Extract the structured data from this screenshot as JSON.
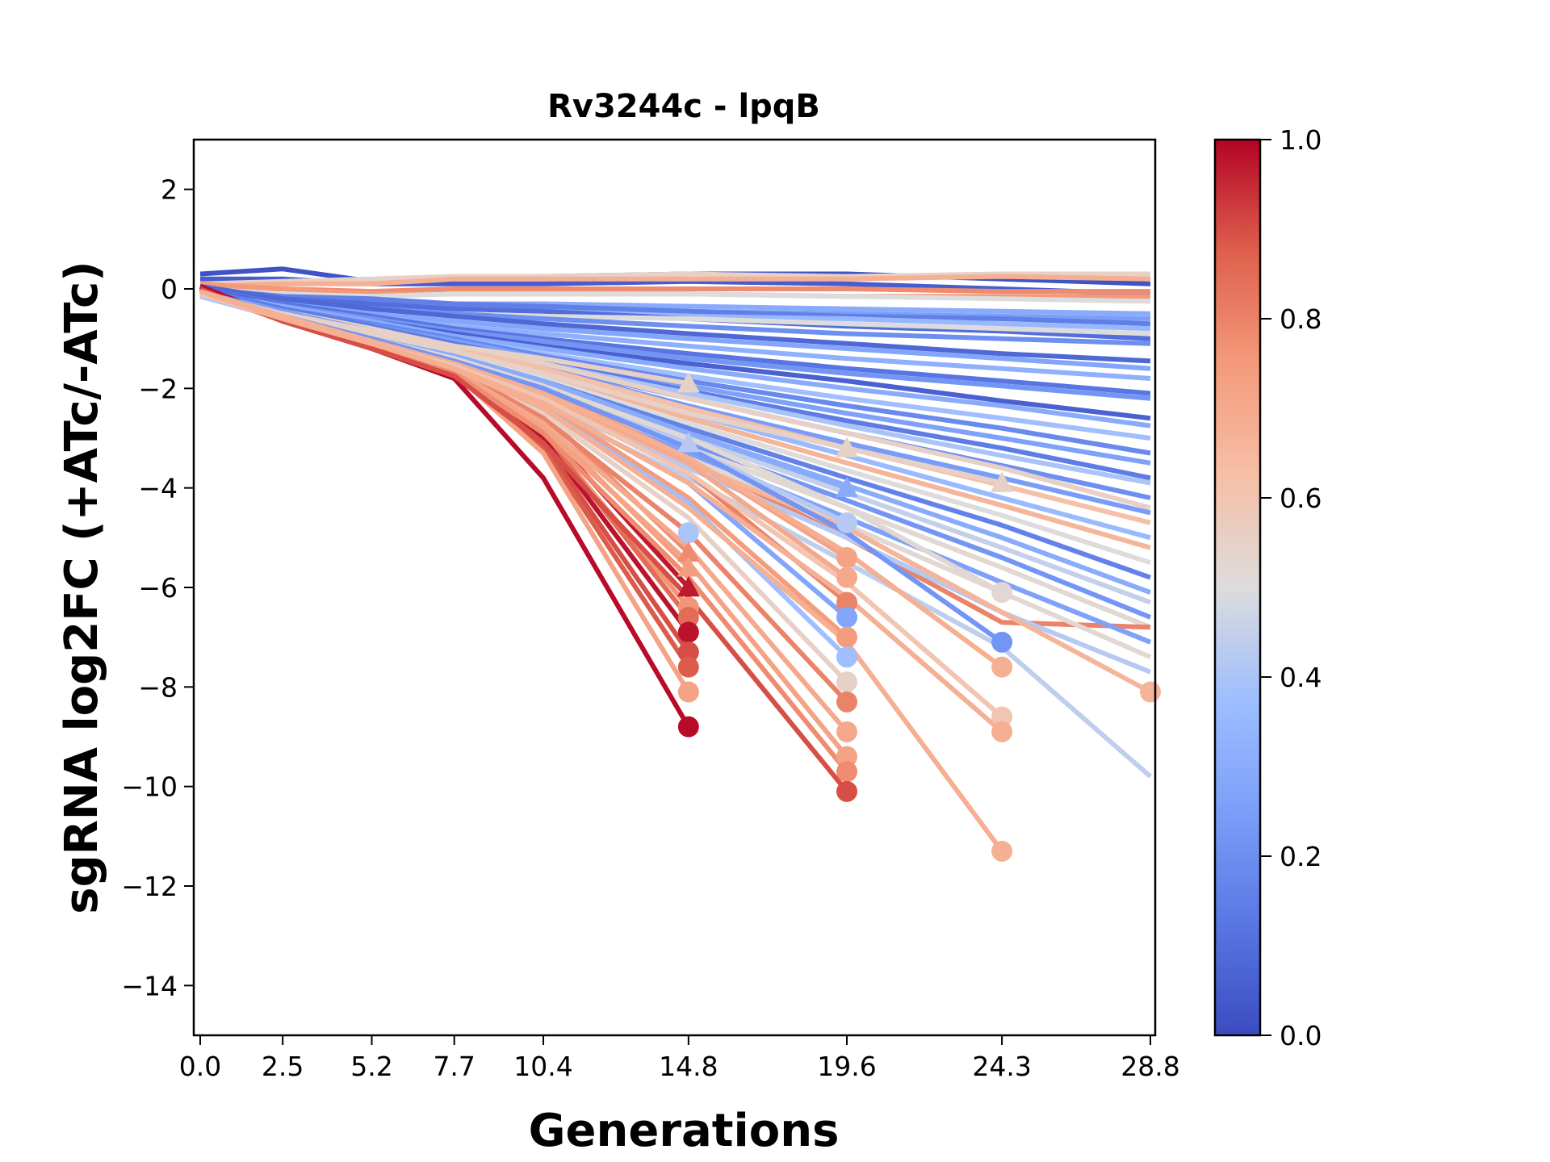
{
  "chart_data": {
    "type": "line",
    "title": "Rv3244c - lpqB",
    "xlabel": "Generations",
    "ylabel": "sgRNA log2FC (+ATc/-ATc)",
    "x": [
      0.0,
      2.5,
      5.2,
      7.7,
      10.4,
      14.8,
      19.6,
      24.3,
      28.8
    ],
    "x_tick_labels": [
      "0.0",
      "2.5",
      "5.2",
      "7.7",
      "10.4",
      "14.8",
      "19.6",
      "24.3",
      "28.8"
    ],
    "ylim": [
      -15,
      3
    ],
    "y_ticks": [
      2,
      0,
      -2,
      -4,
      -6,
      -8,
      -10,
      -12,
      -14
    ],
    "y_tick_labels": [
      "2",
      "0",
      "−2",
      "−4",
      "−6",
      "−8",
      "−10",
      "−12",
      "−14"
    ],
    "grid": false,
    "colormap": "coolwarm",
    "colorbar": {
      "range": [
        0.0,
        1.0
      ],
      "ticks": [
        0.0,
        0.2,
        0.4,
        0.6,
        0.8,
        1.0
      ],
      "tick_labels": [
        "0.0",
        "0.2",
        "0.4",
        "0.6",
        "0.8",
        "1.0"
      ],
      "placement": "right"
    },
    "marker_legend_note": "circle/triangle marker at last measured point of truncated series",
    "series": [
      {
        "c": 0.02,
        "y": [
          0.3,
          0.4,
          0.15,
          0.2,
          0.25,
          0.3,
          0.3,
          0.2,
          0.1
        ]
      },
      {
        "c": 0.05,
        "y": [
          0.2,
          0.2,
          0.1,
          0.1,
          0.1,
          0.15,
          0.1,
          0.0,
          -0.1
        ]
      },
      {
        "c": 0.55,
        "y": [
          0.1,
          0.15,
          0.2,
          0.25,
          0.25,
          0.3,
          0.25,
          0.3,
          0.3
        ]
      },
      {
        "c": 0.68,
        "y": [
          0.05,
          0.1,
          0.1,
          0.2,
          0.2,
          0.2,
          0.2,
          0.25,
          0.2
        ]
      },
      {
        "c": 0.78,
        "y": [
          0.0,
          0.0,
          -0.05,
          0.0,
          0.0,
          0.0,
          0.0,
          -0.05,
          -0.05
        ]
      },
      {
        "c": 0.75,
        "y": [
          0.1,
          0.0,
          -0.1,
          -0.1,
          -0.1,
          -0.1,
          -0.15,
          -0.15,
          -0.15
        ]
      },
      {
        "c": 0.5,
        "y": [
          0.0,
          -0.1,
          -0.15,
          -0.1,
          -0.1,
          -0.1,
          -0.15,
          -0.2,
          -0.25
        ]
      },
      {
        "c": 0.3,
        "y": [
          -0.05,
          -0.2,
          -0.25,
          -0.3,
          -0.3,
          -0.35,
          -0.4,
          -0.45,
          -0.5
        ]
      },
      {
        "c": 0.25,
        "y": [
          0.0,
          -0.2,
          -0.3,
          -0.35,
          -0.4,
          -0.45,
          -0.5,
          -0.55,
          -0.6
        ]
      },
      {
        "c": 0.15,
        "y": [
          0.0,
          -0.15,
          -0.2,
          -0.3,
          -0.35,
          -0.45,
          -0.55,
          -0.6,
          -0.7
        ]
      },
      {
        "c": 0.35,
        "y": [
          -0.1,
          -0.25,
          -0.35,
          -0.4,
          -0.45,
          -0.55,
          -0.6,
          -0.7,
          -0.8
        ]
      },
      {
        "c": 0.1,
        "y": [
          0.0,
          -0.2,
          -0.3,
          -0.4,
          -0.45,
          -0.6,
          -0.75,
          -0.85,
          -1.0
        ]
      },
      {
        "c": 0.5,
        "y": [
          -0.05,
          -0.3,
          -0.45,
          -0.5,
          -0.55,
          -0.6,
          -0.7,
          -0.8,
          -0.9
        ]
      },
      {
        "c": 0.2,
        "y": [
          0.0,
          -0.25,
          -0.4,
          -0.5,
          -0.6,
          -0.75,
          -0.9,
          -1.0,
          -1.1
        ]
      },
      {
        "c": 0.08,
        "y": [
          0.05,
          -0.2,
          -0.4,
          -0.55,
          -0.7,
          -0.9,
          -1.1,
          -1.3,
          -1.45
        ]
      },
      {
        "c": 0.28,
        "y": [
          -0.05,
          -0.3,
          -0.5,
          -0.65,
          -0.8,
          -1.0,
          -1.2,
          -1.4,
          -1.6
        ]
      },
      {
        "c": 0.32,
        "y": [
          -0.05,
          -0.3,
          -0.55,
          -0.75,
          -0.9,
          -1.15,
          -1.4,
          -1.6,
          -1.8
        ]
      },
      {
        "c": 0.12,
        "y": [
          0.0,
          -0.3,
          -0.55,
          -0.8,
          -1.0,
          -1.3,
          -1.6,
          -1.85,
          -2.1
        ]
      },
      {
        "c": 0.22,
        "y": [
          -0.05,
          -0.35,
          -0.6,
          -0.85,
          -1.05,
          -1.4,
          -1.7,
          -1.95,
          -2.2
        ]
      },
      {
        "c": 0.06,
        "y": [
          0.0,
          -0.35,
          -0.65,
          -0.9,
          -1.15,
          -1.5,
          -1.85,
          -2.25,
          -2.6
        ]
      },
      {
        "c": 0.3,
        "y": [
          -0.05,
          -0.35,
          -0.65,
          -0.95,
          -1.2,
          -1.6,
          -2.0,
          -2.35,
          -2.75
        ]
      },
      {
        "c": 0.38,
        "y": [
          -0.1,
          -0.4,
          -0.7,
          -1.0,
          -1.3,
          -1.75,
          -2.2,
          -2.6,
          -3.0
        ]
      },
      {
        "c": 0.18,
        "y": [
          -0.05,
          -0.4,
          -0.7,
          -1.0,
          -1.35,
          -1.85,
          -2.35,
          -2.8,
          -3.3
        ]
      },
      {
        "c": 0.26,
        "y": [
          -0.05,
          -0.4,
          -0.75,
          -1.05,
          -1.4,
          -1.95,
          -2.5,
          -3.0,
          -3.5
        ]
      },
      {
        "c": 0.14,
        "y": [
          0.0,
          -0.4,
          -0.75,
          -1.1,
          -1.45,
          -2.05,
          -2.65,
          -3.2,
          -3.8
        ]
      },
      {
        "c": 0.4,
        "y": [
          -0.1,
          -0.45,
          -0.8,
          -1.15,
          -1.5,
          -2.1,
          -2.75,
          -3.35,
          -3.9
        ]
      },
      {
        "c": 0.2,
        "y": [
          -0.05,
          -0.45,
          -0.8,
          -1.15,
          -1.55,
          -2.2,
          -2.9,
          -3.55,
          -4.2
        ]
      },
      {
        "c": 0.55,
        "y": [
          -0.1,
          -0.45,
          -0.8,
          -1.15,
          -1.5,
          -2.2,
          -2.9,
          -3.6,
          -4.4
        ]
      },
      {
        "c": 0.24,
        "y": [
          -0.05,
          -0.45,
          -0.85,
          -1.2,
          -1.6,
          -2.35,
          -3.1,
          -3.8,
          -4.5
        ]
      },
      {
        "c": 0.62,
        "y": [
          -0.1,
          -0.5,
          -0.85,
          -1.2,
          -1.6,
          -2.4,
          -3.2,
          -3.95,
          -4.7
        ]
      },
      {
        "c": 0.36,
        "y": [
          -0.1,
          -0.5,
          -0.85,
          -1.25,
          -1.7,
          -2.5,
          -3.35,
          -4.2,
          -5.0
        ]
      },
      {
        "c": 0.66,
        "y": [
          -0.1,
          -0.5,
          -0.9,
          -1.3,
          -1.75,
          -2.6,
          -3.5,
          -4.35,
          -5.2
        ]
      },
      {
        "c": 0.5,
        "y": [
          -0.1,
          -0.5,
          -0.9,
          -1.3,
          -1.8,
          -2.7,
          -3.65,
          -4.55,
          -5.5
        ]
      },
      {
        "c": 0.16,
        "y": [
          -0.05,
          -0.5,
          -0.95,
          -1.35,
          -1.85,
          -2.8,
          -3.8,
          -4.75,
          -5.8
        ]
      },
      {
        "c": 0.3,
        "y": [
          -0.1,
          -0.5,
          -0.95,
          -1.4,
          -1.9,
          -2.9,
          -3.95,
          -5.0,
          -6.1
        ]
      },
      {
        "c": 0.45,
        "y": [
          -0.1,
          -0.55,
          -1.0,
          -1.45,
          -2.0,
          -3.0,
          -4.1,
          -5.2,
          -6.3
        ]
      },
      {
        "c": 0.22,
        "y": [
          -0.05,
          -0.55,
          -1.0,
          -1.5,
          -2.05,
          -3.1,
          -4.25,
          -5.4,
          -6.6
        ]
      },
      {
        "c": 0.52,
        "y": [
          -0.1,
          -0.55,
          -1.05,
          -1.5,
          -2.1,
          -3.2,
          -4.4,
          -5.6,
          -6.8
        ]
      },
      {
        "c": 0.8,
        "y": [
          -0.1,
          -0.55,
          -1.0,
          -1.45,
          -2.0,
          -3.4,
          -5.0,
          -6.7,
          -6.8
        ]
      },
      {
        "c": 0.26,
        "y": [
          -0.05,
          -0.55,
          -1.05,
          -1.55,
          -2.15,
          -3.3,
          -4.6,
          -5.9,
          -7.1
        ]
      },
      {
        "c": 0.52,
        "y": [
          -0.1,
          -0.6,
          -1.1,
          -1.6,
          -2.2,
          -3.4,
          -4.75,
          -6.1,
          -7.4
        ]
      },
      {
        "c": 0.42,
        "y": [
          -0.1,
          -0.6,
          -1.1,
          -1.6,
          -2.3,
          -3.6,
          -5.0,
          -6.5,
          -7.7
        ]
      },
      {
        "c": 0.66,
        "y": [
          -0.1,
          -0.55,
          -1.05,
          -1.55,
          -2.2,
          -3.5,
          -4.8,
          -6.5,
          -8.1
        ],
        "marker": "o"
      },
      {
        "c": 0.44,
        "y": [
          -0.1,
          -0.6,
          -1.15,
          -1.7,
          -2.4,
          -3.8,
          -5.5,
          -7.2,
          -9.8
        ]
      },
      {
        "c": 0.55,
        "y": [
          -0.1,
          -0.5,
          -0.85,
          -1.15,
          -1.4,
          -1.9
        ],
        "marker": "^"
      },
      {
        "c": 0.42,
        "y": [
          -0.1,
          -0.55,
          -1.0,
          -1.4,
          -1.9,
          -3.1
        ],
        "marker": "^"
      },
      {
        "c": 0.4,
        "y": [
          -0.15,
          -0.6,
          -1.1,
          -1.6,
          -2.6,
          -4.9
        ],
        "marker": "o"
      },
      {
        "c": 0.78,
        "y": [
          -0.05,
          -0.55,
          -1.05,
          -1.5,
          -2.5,
          -5.3
        ],
        "marker": "^"
      },
      {
        "c": 0.74,
        "y": [
          -0.05,
          -0.6,
          -1.1,
          -1.55,
          -2.7,
          -5.6
        ],
        "marker": "^"
      },
      {
        "c": 0.97,
        "y": [
          0.0,
          -0.6,
          -1.1,
          -1.6,
          -2.8,
          -6.0
        ],
        "marker": "^"
      },
      {
        "c": 0.76,
        "y": [
          -0.05,
          -0.6,
          -1.1,
          -1.6,
          -2.9,
          -6.4
        ],
        "marker": "o"
      },
      {
        "c": 0.85,
        "y": [
          0.0,
          -0.6,
          -1.15,
          -1.6,
          -2.9,
          -6.6
        ],
        "marker": "o"
      },
      {
        "c": 0.98,
        "y": [
          0.05,
          -0.6,
          -1.15,
          -1.65,
          -3.0,
          -6.9
        ],
        "marker": "o"
      },
      {
        "c": 0.9,
        "y": [
          0.0,
          -0.6,
          -1.15,
          -1.65,
          -3.1,
          -7.3
        ],
        "marker": "o"
      },
      {
        "c": 0.88,
        "y": [
          0.0,
          -0.65,
          -1.2,
          -1.7,
          -3.2,
          -7.6
        ],
        "marker": "o"
      },
      {
        "c": 0.72,
        "y": [
          -0.05,
          -0.65,
          -1.2,
          -1.7,
          -3.3,
          -8.1
        ],
        "marker": "o"
      },
      {
        "c": 0.99,
        "y": [
          0.05,
          -0.6,
          -1.2,
          -1.8,
          -3.8,
          -8.8
        ],
        "marker": "o"
      },
      {
        "c": 0.55,
        "y": [
          -0.1,
          -0.5,
          -0.9,
          -1.25,
          -1.7,
          -2.5,
          -3.2
        ],
        "marker": "^"
      },
      {
        "c": 0.3,
        "y": [
          -0.05,
          -0.5,
          -0.95,
          -1.35,
          -1.85,
          -2.9,
          -4.0
        ],
        "marker": "^"
      },
      {
        "c": 0.42,
        "y": [
          -0.1,
          -0.55,
          -1.0,
          -1.45,
          -2.0,
          -3.2,
          -4.7
        ],
        "marker": "o"
      },
      {
        "c": 0.72,
        "y": [
          -0.05,
          -0.55,
          -1.0,
          -1.45,
          -2.0,
          -3.4,
          -5.4
        ],
        "marker": "o"
      },
      {
        "c": 0.7,
        "y": [
          -0.05,
          -0.55,
          -1.0,
          -1.5,
          -2.1,
          -3.5,
          -5.8
        ],
        "marker": "o"
      },
      {
        "c": 0.8,
        "y": [
          -0.05,
          -0.55,
          -1.05,
          -1.5,
          -2.2,
          -3.7,
          -6.3
        ],
        "marker": "o"
      },
      {
        "c": 0.28,
        "y": [
          -0.05,
          -0.55,
          -1.05,
          -1.55,
          -2.3,
          -3.9,
          -6.6
        ],
        "marker": "o"
      },
      {
        "c": 0.74,
        "y": [
          -0.05,
          -0.6,
          -1.1,
          -1.55,
          -2.3,
          -4.2,
          -7.0
        ],
        "marker": "o"
      },
      {
        "c": 0.38,
        "y": [
          -0.1,
          -0.6,
          -1.1,
          -1.6,
          -2.4,
          -4.3,
          -7.4
        ],
        "marker": "o"
      },
      {
        "c": 0.55,
        "y": [
          -0.1,
          -0.6,
          -1.1,
          -1.6,
          -2.5,
          -4.6,
          -7.9
        ],
        "marker": "o"
      },
      {
        "c": 0.8,
        "y": [
          -0.05,
          -0.6,
          -1.1,
          -1.6,
          -2.6,
          -4.9,
          -8.3
        ],
        "marker": "o"
      },
      {
        "c": 0.7,
        "y": [
          -0.05,
          -0.6,
          -1.15,
          -1.65,
          -2.7,
          -5.2,
          -8.9
        ],
        "marker": "o"
      },
      {
        "c": 0.72,
        "y": [
          -0.05,
          -0.6,
          -1.15,
          -1.65,
          -2.8,
          -5.5,
          -9.4
        ],
        "marker": "o"
      },
      {
        "c": 0.78,
        "y": [
          -0.05,
          -0.6,
          -1.15,
          -1.7,
          -2.9,
          -5.8,
          -9.7
        ],
        "marker": "o"
      },
      {
        "c": 0.9,
        "y": [
          0.0,
          -0.65,
          -1.2,
          -1.75,
          -3.1,
          -6.2,
          -10.1
        ],
        "marker": "o"
      },
      {
        "c": 0.55,
        "y": [
          -0.1,
          -0.5,
          -0.9,
          -1.25,
          -1.7,
          -2.5,
          -3.2,
          -3.9
        ],
        "marker": "^"
      },
      {
        "c": 0.52,
        "y": [
          -0.1,
          -0.55,
          -1.0,
          -1.4,
          -1.95,
          -3.0,
          -4.4,
          -6.1
        ],
        "marker": "o"
      },
      {
        "c": 0.22,
        "y": [
          -0.05,
          -0.55,
          -1.0,
          -1.45,
          -2.0,
          -3.2,
          -4.9,
          -7.1
        ],
        "marker": "o"
      },
      {
        "c": 0.68,
        "y": [
          -0.05,
          -0.55,
          -1.05,
          -1.5,
          -2.1,
          -3.4,
          -5.3,
          -7.6
        ],
        "marker": "o"
      },
      {
        "c": 0.6,
        "y": [
          -0.1,
          -0.6,
          -1.1,
          -1.55,
          -2.2,
          -3.7,
          -5.9,
          -8.6
        ],
        "marker": "o"
      },
      {
        "c": 0.68,
        "y": [
          -0.05,
          -0.6,
          -1.1,
          -1.6,
          -2.3,
          -3.9,
          -6.2,
          -8.9
        ],
        "marker": "o"
      },
      {
        "c": 0.68,
        "y": [
          -0.05,
          -0.6,
          -1.1,
          -1.6,
          -2.4,
          -4.4,
          -7.1,
          -11.3
        ],
        "marker": "o"
      }
    ]
  }
}
